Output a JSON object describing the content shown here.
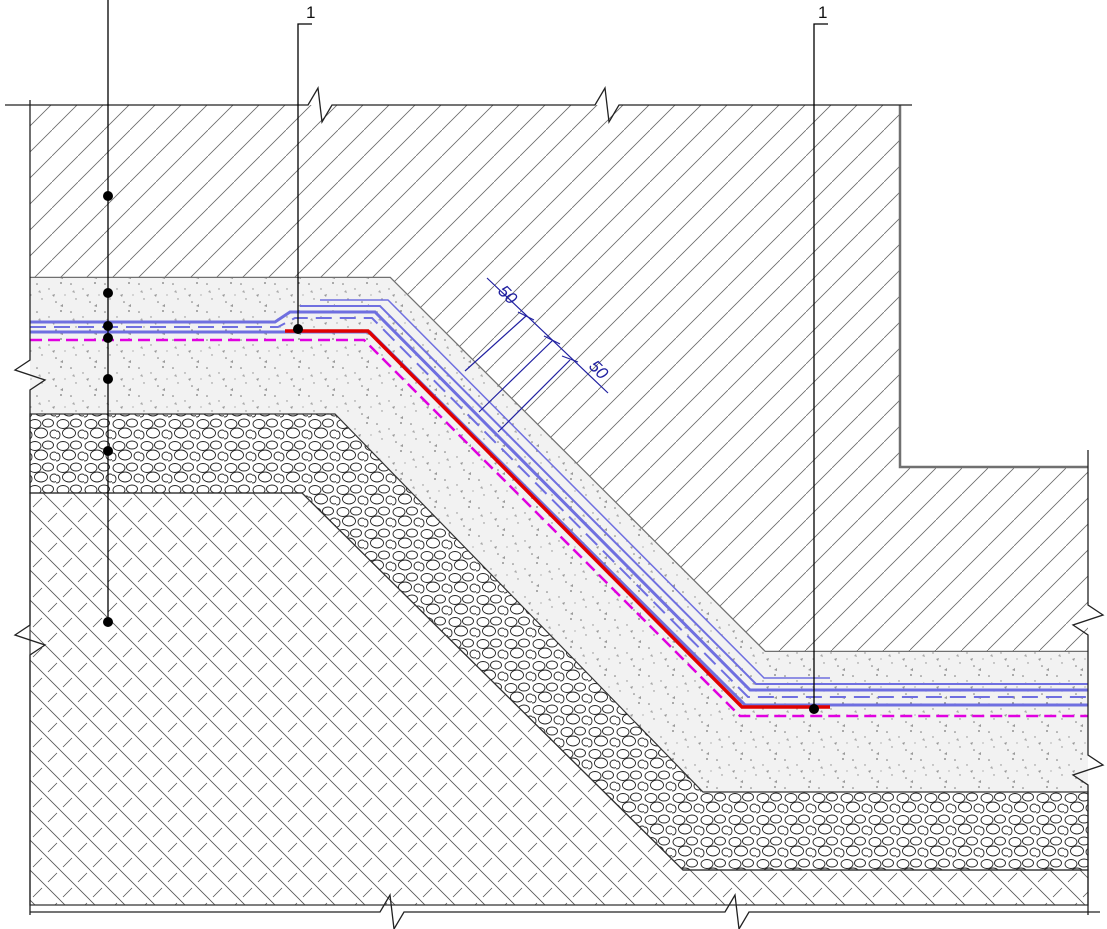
{
  "callouts": [
    {
      "label": "1"
    },
    {
      "label": "1"
    }
  ],
  "dimensions": [
    {
      "value": "50"
    },
    {
      "value": "50"
    }
  ],
  "colors": {
    "concrete_outline": "#707070",
    "hatch": "#555555",
    "waterproofing_blue": "#6f6fe0",
    "waterproofing_red": "#e00000",
    "separation_magenta": "#e000e0",
    "dimension_line": "#2020a0",
    "leader": "#000000"
  },
  "legend_icons": [
    "concrete-hatch",
    "gravel-hatch",
    "soil-hatch",
    "sand-concrete-stipple"
  ]
}
